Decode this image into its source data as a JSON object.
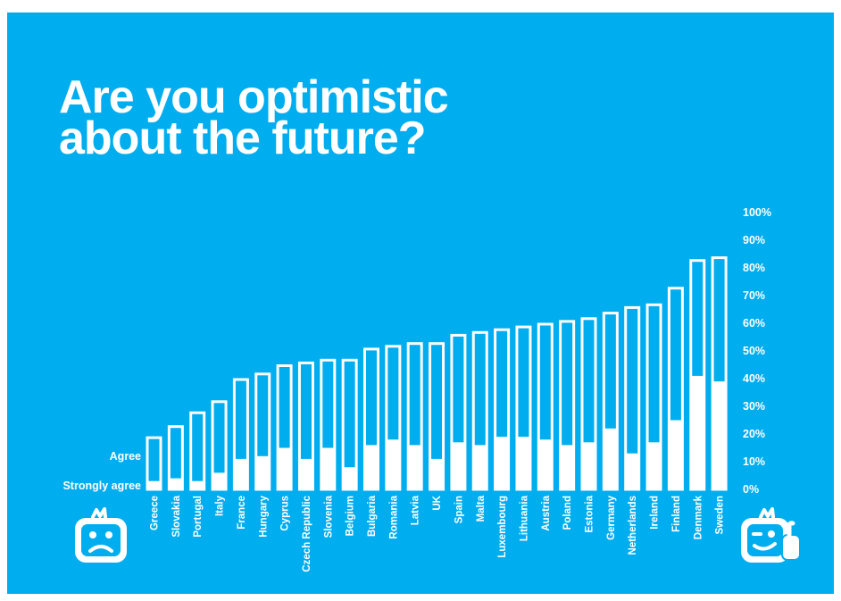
{
  "page": {
    "title_line1": "Are you optimistic",
    "title_line2": "about the future?",
    "colors": {
      "background": "#00adef",
      "foreground": "#ffffff"
    },
    "left_icon": "sad-face-icon",
    "right_icon": "winking-face-thumbs-up-icon"
  },
  "chart_data": {
    "type": "bar",
    "stacked": true,
    "categories": [
      "Greece",
      "Slovakia",
      "Portugal",
      "Italy",
      "France",
      "Hungary",
      "Cyprus",
      "Czech Republic",
      "Slovenia",
      "Belgium",
      "Bulgaria",
      "Romania",
      "Latvia",
      "UK",
      "Spain",
      "Malta",
      "Luxembourg",
      "Lithuania",
      "Austria",
      "Poland",
      "Estonia",
      "Germany",
      "Netherlands",
      "Ireland",
      "Finland",
      "Denmark",
      "Sweden"
    ],
    "series": [
      {
        "name": "Strongly agree",
        "values": [
          3,
          4,
          3,
          6,
          11,
          12,
          15,
          11,
          15,
          8,
          16,
          18,
          16,
          11,
          17,
          16,
          19,
          19,
          18,
          16,
          17,
          22,
          13,
          17,
          25,
          41,
          39
        ]
      },
      {
        "name": "Agree",
        "values": [
          16,
          19,
          25,
          26,
          29,
          30,
          30,
          35,
          32,
          39,
          35,
          34,
          37,
          42,
          39,
          41,
          39,
          40,
          42,
          45,
          45,
          42,
          53,
          50,
          48,
          42,
          45
        ]
      }
    ],
    "yticks": [
      "0%",
      "10%",
      "20%",
      "30%",
      "40%",
      "50%",
      "60%",
      "70%",
      "80%",
      "90%",
      "100%"
    ],
    "ylim": [
      0,
      100
    ],
    "axis_position": "right",
    "legend_position": "left",
    "grid": false
  }
}
